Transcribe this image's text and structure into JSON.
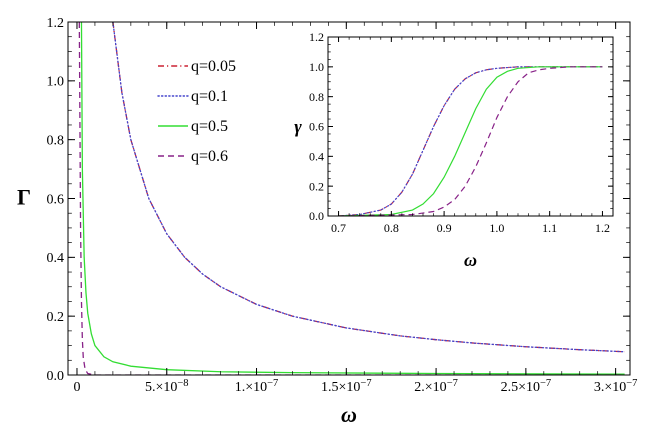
{
  "colors": {
    "q005": "#cc2233",
    "q01": "#4444cc",
    "q05": "#33dd33",
    "q06": "#882288",
    "axis": "#000000"
  },
  "chart_data": [
    {
      "id": "main",
      "type": "line",
      "title": "",
      "xlabel": "ω",
      "ylabel": "Γ",
      "xlim": [
        -5e-09,
        3.08e-07
      ],
      "ylim": [
        0,
        1.2
      ],
      "x_ticks": [
        {
          "value": 0,
          "label": "0"
        },
        {
          "value": 5e-08,
          "label": "5.×10",
          "exp": "−8"
        },
        {
          "value": 1e-07,
          "label": "1.×10",
          "exp": "−7"
        },
        {
          "value": 1.5e-07,
          "label": "1.5×10",
          "exp": "−7"
        },
        {
          "value": 2e-07,
          "label": "2.×10",
          "exp": "−7"
        },
        {
          "value": 2.5e-07,
          "label": "2.5×10",
          "exp": "−7"
        },
        {
          "value": 3e-07,
          "label": "3.×10",
          "exp": "−7"
        }
      ],
      "y_ticks": [
        {
          "value": 0,
          "label": "0.0"
        },
        {
          "value": 0.2,
          "label": "0.2"
        },
        {
          "value": 0.4,
          "label": "0.4"
        },
        {
          "value": 0.6,
          "label": "0.6"
        },
        {
          "value": 0.8,
          "label": "0.8"
        },
        {
          "value": 1.0,
          "label": "1.0"
        },
        {
          "value": 1.2,
          "label": "1.2"
        }
      ],
      "legend_position": "top-left",
      "series": [
        {
          "name": "q=0.05",
          "style": "dashdot",
          "color_key": "q005",
          "x": [
            2e-08,
            2.5e-08,
            3e-08,
            4e-08,
            5e-08,
            6e-08,
            7e-08,
            8e-08,
            1e-07,
            1.2e-07,
            1.5e-07,
            1.8e-07,
            2e-07,
            2.2e-07,
            2.5e-07,
            2.8e-07,
            3.05e-07
          ],
          "y": [
            1.2,
            0.96,
            0.8,
            0.6,
            0.48,
            0.4,
            0.343,
            0.3,
            0.24,
            0.2,
            0.16,
            0.133,
            0.12,
            0.109,
            0.096,
            0.086,
            0.079
          ]
        },
        {
          "name": "q=0.1",
          "style": "dotted",
          "color_key": "q01",
          "x": [
            2e-08,
            2.5e-08,
            3e-08,
            4e-08,
            5e-08,
            6e-08,
            7e-08,
            8e-08,
            1e-07,
            1.2e-07,
            1.5e-07,
            1.8e-07,
            2e-07,
            2.2e-07,
            2.5e-07,
            2.8e-07,
            3.05e-07
          ],
          "y": [
            1.2,
            0.96,
            0.8,
            0.6,
            0.48,
            0.4,
            0.343,
            0.3,
            0.24,
            0.2,
            0.16,
            0.133,
            0.12,
            0.109,
            0.096,
            0.086,
            0.079
          ]
        },
        {
          "name": "q=0.5",
          "style": "solid",
          "color_key": "q05",
          "x": [
            2.5e-09,
            3e-09,
            4e-09,
            5e-09,
            6e-09,
            8e-09,
            1e-08,
            1.5e-08,
            2e-08,
            3e-08,
            5e-08,
            8e-08,
            1.2e-07,
            2e-07,
            3.05e-07
          ],
          "y": [
            1.2,
            0.7,
            0.4,
            0.28,
            0.21,
            0.14,
            0.1,
            0.062,
            0.045,
            0.03,
            0.018,
            0.011,
            0.008,
            0.005,
            0.003
          ]
        },
        {
          "name": "q=0.6",
          "style": "dashed",
          "color_key": "q06",
          "x": [
            1.3e-09,
            1.6e-09,
            2e-09,
            2.5e-09,
            3e-09,
            3.5e-09,
            4.5e-09,
            6e-09,
            1e-08,
            3.05e-07
          ],
          "y": [
            1.2,
            0.9,
            0.5,
            0.25,
            0.12,
            0.06,
            0.02,
            0.005,
            0.0,
            0.0
          ]
        }
      ]
    },
    {
      "id": "inset",
      "type": "line",
      "title": "",
      "xlabel": "ω",
      "ylabel": "γ",
      "xlim": [
        0.68,
        1.22
      ],
      "ylim": [
        0,
        1.2
      ],
      "x_ticks": [
        {
          "value": 0.7,
          "label": "0.7"
        },
        {
          "value": 0.8,
          "label": "0.8"
        },
        {
          "value": 0.9,
          "label": "0.9"
        },
        {
          "value": 1.0,
          "label": "1.0"
        },
        {
          "value": 1.1,
          "label": "1.1"
        },
        {
          "value": 1.2,
          "label": "1.2"
        }
      ],
      "y_ticks": [
        {
          "value": 0,
          "label": "0.0"
        },
        {
          "value": 0.2,
          "label": "0.2"
        },
        {
          "value": 0.4,
          "label": "0.4"
        },
        {
          "value": 0.6,
          "label": "0.6"
        },
        {
          "value": 0.8,
          "label": "0.8"
        },
        {
          "value": 1.0,
          "label": "1.0"
        },
        {
          "value": 1.2,
          "label": "1.2"
        }
      ],
      "series": [
        {
          "name": "q=0.05",
          "style": "dashdot",
          "color_key": "q005",
          "x": [
            0.7,
            0.74,
            0.78,
            0.8,
            0.82,
            0.84,
            0.86,
            0.88,
            0.9,
            0.92,
            0.94,
            0.96,
            0.98,
            1.0,
            1.04,
            1.1,
            1.2
          ],
          "y": [
            0.0,
            0.01,
            0.04,
            0.08,
            0.16,
            0.28,
            0.44,
            0.6,
            0.74,
            0.85,
            0.92,
            0.96,
            0.98,
            0.99,
            1.0,
            1.0,
            1.0
          ]
        },
        {
          "name": "q=0.1",
          "style": "dotted",
          "color_key": "q01",
          "x": [
            0.7,
            0.74,
            0.78,
            0.8,
            0.82,
            0.84,
            0.86,
            0.88,
            0.9,
            0.92,
            0.94,
            0.96,
            0.98,
            1.0,
            1.04,
            1.1,
            1.2
          ],
          "y": [
            0.0,
            0.01,
            0.04,
            0.08,
            0.16,
            0.28,
            0.44,
            0.6,
            0.74,
            0.85,
            0.92,
            0.96,
            0.98,
            0.99,
            1.0,
            1.0,
            1.0
          ]
        },
        {
          "name": "q=0.5",
          "style": "solid",
          "color_key": "q05",
          "x": [
            0.7,
            0.8,
            0.84,
            0.86,
            0.88,
            0.9,
            0.92,
            0.94,
            0.96,
            0.98,
            1.0,
            1.02,
            1.04,
            1.08,
            1.12,
            1.2
          ],
          "y": [
            0.0,
            0.01,
            0.04,
            0.08,
            0.15,
            0.26,
            0.4,
            0.56,
            0.72,
            0.85,
            0.93,
            0.97,
            0.99,
            1.0,
            1.0,
            1.0
          ]
        },
        {
          "name": "q=0.6",
          "style": "dashed",
          "color_key": "q06",
          "x": [
            0.7,
            0.84,
            0.88,
            0.9,
            0.92,
            0.94,
            0.96,
            0.98,
            1.0,
            1.02,
            1.04,
            1.06,
            1.08,
            1.1,
            1.14,
            1.2
          ],
          "y": [
            0.0,
            0.01,
            0.03,
            0.06,
            0.11,
            0.2,
            0.33,
            0.49,
            0.66,
            0.8,
            0.9,
            0.96,
            0.98,
            0.99,
            1.0,
            1.0
          ]
        }
      ]
    }
  ]
}
